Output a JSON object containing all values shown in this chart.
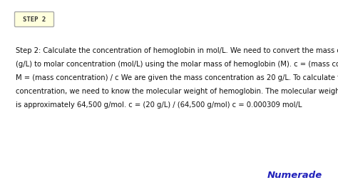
{
  "background_color": "#ffffff",
  "step_label": "STEP 2",
  "step_box_facecolor": "#ffffdd",
  "step_box_edgecolor": "#aaaaaa",
  "body_text_line1": "Step 2: Calculate the concentration of hemoglobin in mol/L. We need to convert the mass concentration",
  "body_text_line2": "(g/L) to molar concentration (mol/L) using the molar mass of hemoglobin (M). c = (mass concentration) / M",
  "body_text_line3": "M = (mass concentration) / c We are given the mass concentration as 20 g/L. To calculate the molar",
  "body_text_line4": "concentration, we need to know the molecular weight of hemoglobin. The molecular weight of hemoglobin",
  "body_text_line5": "is approximately 64,500 g/mol. c = (20 g/L) / (64,500 g/mol) c = 0.000309 mol/L",
  "body_text_color": "#111111",
  "body_fontsize": 7.2,
  "step_fontsize": 6.5,
  "step_label_color": "#333333",
  "numerade_text": "Numerade",
  "numerade_color": "#2222bb",
  "numerade_fontsize": 9.5
}
